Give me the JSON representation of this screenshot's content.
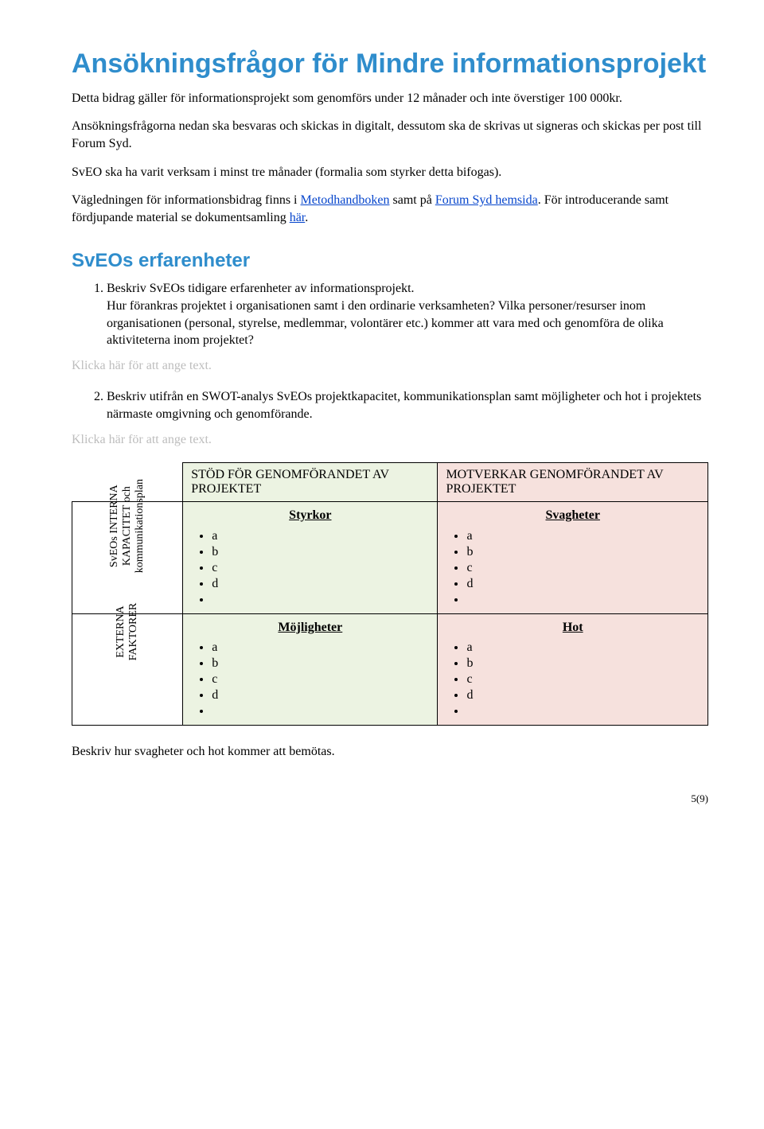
{
  "title": "Ansökningsfrågor för Mindre informationsprojekt",
  "intro": {
    "p1": "Detta bidrag gäller för informationsprojekt som genomförs under 12 månader och inte överstiger 100 000kr.",
    "p2": "Ansökningsfrågorna nedan ska besvaras och skickas in digitalt, dessutom ska de skrivas ut signeras och skickas per post till Forum Syd.",
    "p3": "SvEO ska ha varit verksam i minst tre månader (formalia som styrker detta bifogas).",
    "p4_pre": "Vägledningen för informationsbidrag finns i ",
    "p4_link1": "Metodhandboken",
    "p4_mid": " samt på ",
    "p4_link2": "Forum Syd hemsida",
    "p4_post": ". För introducerande samt fördjupande material se dokumentsamling ",
    "p4_link3": "här",
    "p4_end": "."
  },
  "section2": {
    "heading": "SvEOs erfarenheter",
    "item1_lead": "Beskriv SvEOs tidigare erfarenheter av informationsprojekt.",
    "item1_body": "Hur förankras projektet i organisationen samt i den ordinarie verksamheten? Vilka personer/resurser inom organisationen (personal, styrelse, medlemmar, volontärer etc.) kommer att vara med och genomföra de olika aktiviteterna inom projektet?",
    "placeholder1": "Klicka här för att ange text.",
    "item2": "Beskriv utifrån en SWOT-analys SvEOs projektkapacitet, kommunikationsplan samt möjligheter och hot i projektets närmaste omgivning och genomförande.",
    "placeholder2": "Klicka här för att ange text."
  },
  "swot": {
    "header_support": "STÖD FÖR GENOMFÖRANDET AV PROJEKTET",
    "header_against": "MOTVERKAR GENOMFÖRANDET AV PROJEKTET",
    "row1_label_line1": "SvEOs INTERNA",
    "row1_label_line2": "KAPACITET och",
    "row1_label_line3": "kommunikationsplan",
    "row2_label_line1": "EXTERNA",
    "row2_label_line2": "FAKTORER",
    "q_strengths": "Styrkor",
    "q_weaknesses": "Svagheter",
    "q_opportunities": "Möjligheter",
    "q_threats": "Hot",
    "items": [
      "a",
      "b",
      "c",
      "d",
      ""
    ],
    "colors": {
      "green": "#ecf3e2",
      "red": "#f6e1dd",
      "heading_blue": "#2f8dcc",
      "link_blue": "#0645cc",
      "placeholder_gray": "#bdbdbd"
    }
  },
  "after_table": "Beskriv hur svagheter och hot kommer att bemötas.",
  "footer": "5(9)"
}
